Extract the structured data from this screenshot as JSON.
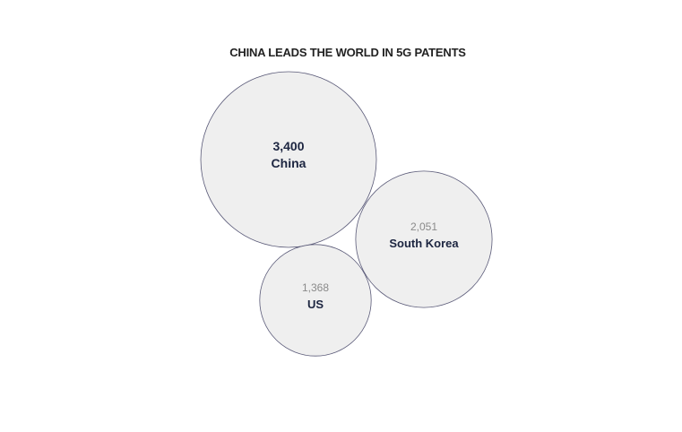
{
  "chart_data": {
    "type": "bubble",
    "title": "CHINA LEADS THE WORLD IN 5G PATENTS",
    "items": [
      {
        "label": "China",
        "value": 3400,
        "value_text": "3,400"
      },
      {
        "label": "South Korea",
        "value": 2051,
        "value_text": "2,051"
      },
      {
        "label": "US",
        "value": 1368,
        "value_text": "1,368"
      }
    ],
    "colors": {
      "fill": "#efefef",
      "stroke": "#5a5a78",
      "label": "#1c2540",
      "primary_value": "#1c2540",
      "secondary_value": "#8a8a8a"
    }
  }
}
